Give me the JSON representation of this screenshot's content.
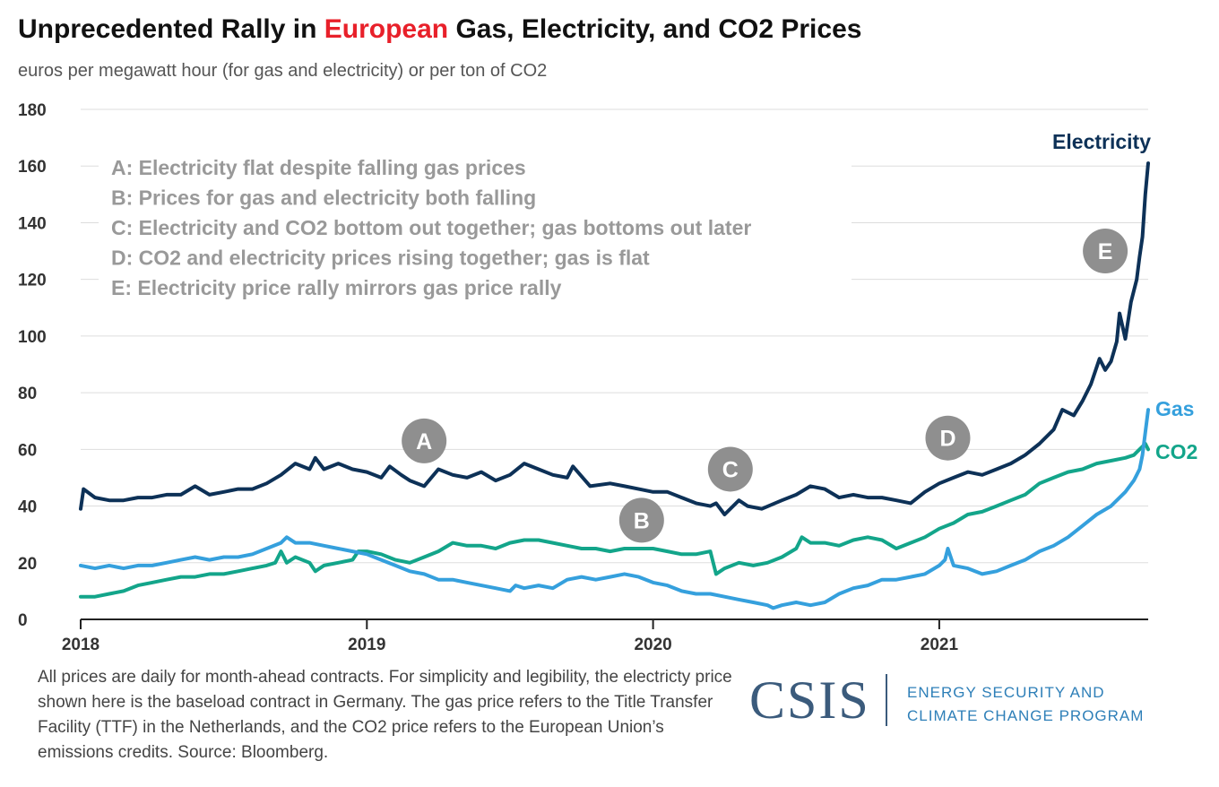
{
  "header": {
    "title_pre": "Unprecedented Rally in ",
    "title_highlight": "European",
    "title_post": " Gas, Electricity, and CO2 Prices",
    "subtitle": "euros per megawatt hour (for gas and electricity) or per ton of CO2"
  },
  "colors": {
    "electricity": "#0d3157",
    "gas": "#35a0dd",
    "co2": "#13a58a",
    "highlight": "#e8202a",
    "marker": "#8f8f8f",
    "legend_text": "#999999"
  },
  "chart_data": {
    "type": "line",
    "title": "Unprecedented Rally in European Gas, Electricity, and CO2 Prices",
    "ylabel": "euros per megawatt hour (for gas and electricity) or per ton of CO2",
    "ylim": [
      0,
      180
    ],
    "yticks": [
      "0",
      "20",
      "40",
      "60",
      "80",
      "100",
      "120",
      "140",
      "160",
      "180"
    ],
    "xlim": [
      2018.0,
      2021.73
    ],
    "xticks": [
      {
        "value": 2018,
        "label": "2018"
      },
      {
        "value": 2019,
        "label": "2019"
      },
      {
        "value": 2020,
        "label": "2020"
      },
      {
        "value": 2021,
        "label": "2021"
      }
    ],
    "grid": true,
    "series": [
      {
        "name": "Electricity",
        "color": "#0d3157",
        "points": [
          [
            2018.0,
            39
          ],
          [
            2018.01,
            46
          ],
          [
            2018.05,
            43
          ],
          [
            2018.1,
            42
          ],
          [
            2018.15,
            42
          ],
          [
            2018.2,
            43
          ],
          [
            2018.25,
            43
          ],
          [
            2018.3,
            44
          ],
          [
            2018.35,
            44
          ],
          [
            2018.4,
            47
          ],
          [
            2018.45,
            44
          ],
          [
            2018.5,
            45
          ],
          [
            2018.55,
            46
          ],
          [
            2018.6,
            46
          ],
          [
            2018.65,
            48
          ],
          [
            2018.7,
            51
          ],
          [
            2018.75,
            55
          ],
          [
            2018.8,
            53
          ],
          [
            2018.82,
            57
          ],
          [
            2018.85,
            53
          ],
          [
            2018.9,
            55
          ],
          [
            2018.95,
            53
          ],
          [
            2019.0,
            52
          ],
          [
            2019.05,
            50
          ],
          [
            2019.08,
            54
          ],
          [
            2019.12,
            51
          ],
          [
            2019.15,
            49
          ],
          [
            2019.2,
            47
          ],
          [
            2019.25,
            53
          ],
          [
            2019.3,
            51
          ],
          [
            2019.35,
            50
          ],
          [
            2019.4,
            52
          ],
          [
            2019.45,
            49
          ],
          [
            2019.5,
            51
          ],
          [
            2019.55,
            55
          ],
          [
            2019.6,
            53
          ],
          [
            2019.65,
            51
          ],
          [
            2019.7,
            50
          ],
          [
            2019.72,
            54
          ],
          [
            2019.78,
            47
          ],
          [
            2019.85,
            48
          ],
          [
            2019.9,
            47
          ],
          [
            2019.95,
            46
          ],
          [
            2020.0,
            45
          ],
          [
            2020.05,
            45
          ],
          [
            2020.1,
            43
          ],
          [
            2020.15,
            41
          ],
          [
            2020.2,
            40
          ],
          [
            2020.22,
            41
          ],
          [
            2020.25,
            37
          ],
          [
            2020.3,
            42
          ],
          [
            2020.33,
            40
          ],
          [
            2020.38,
            39
          ],
          [
            2020.45,
            42
          ],
          [
            2020.5,
            44
          ],
          [
            2020.55,
            47
          ],
          [
            2020.6,
            46
          ],
          [
            2020.65,
            43
          ],
          [
            2020.7,
            44
          ],
          [
            2020.75,
            43
          ],
          [
            2020.8,
            43
          ],
          [
            2020.85,
            42
          ],
          [
            2020.9,
            41
          ],
          [
            2020.95,
            45
          ],
          [
            2021.0,
            48
          ],
          [
            2021.05,
            50
          ],
          [
            2021.1,
            52
          ],
          [
            2021.15,
            51
          ],
          [
            2021.2,
            53
          ],
          [
            2021.25,
            55
          ],
          [
            2021.3,
            58
          ],
          [
            2021.35,
            62
          ],
          [
            2021.4,
            67
          ],
          [
            2021.43,
            74
          ],
          [
            2021.47,
            72
          ],
          [
            2021.5,
            77
          ],
          [
            2021.53,
            83
          ],
          [
            2021.56,
            92
          ],
          [
            2021.58,
            88
          ],
          [
            2021.6,
            91
          ],
          [
            2021.62,
            98
          ],
          [
            2021.63,
            108
          ],
          [
            2021.65,
            99
          ],
          [
            2021.67,
            112
          ],
          [
            2021.69,
            120
          ],
          [
            2021.7,
            128
          ],
          [
            2021.71,
            135
          ],
          [
            2021.72,
            150
          ],
          [
            2021.73,
            161
          ]
        ]
      },
      {
        "name": "Gas",
        "color": "#35a0dd",
        "points": [
          [
            2018.0,
            19
          ],
          [
            2018.05,
            18
          ],
          [
            2018.1,
            19
          ],
          [
            2018.15,
            18
          ],
          [
            2018.2,
            19
          ],
          [
            2018.25,
            19
          ],
          [
            2018.3,
            20
          ],
          [
            2018.35,
            21
          ],
          [
            2018.4,
            22
          ],
          [
            2018.45,
            21
          ],
          [
            2018.5,
            22
          ],
          [
            2018.55,
            22
          ],
          [
            2018.6,
            23
          ],
          [
            2018.65,
            25
          ],
          [
            2018.7,
            27
          ],
          [
            2018.72,
            29
          ],
          [
            2018.75,
            27
          ],
          [
            2018.8,
            27
          ],
          [
            2018.85,
            26
          ],
          [
            2018.9,
            25
          ],
          [
            2018.95,
            24
          ],
          [
            2019.0,
            23
          ],
          [
            2019.05,
            21
          ],
          [
            2019.1,
            19
          ],
          [
            2019.15,
            17
          ],
          [
            2019.2,
            16
          ],
          [
            2019.25,
            14
          ],
          [
            2019.3,
            14
          ],
          [
            2019.35,
            13
          ],
          [
            2019.4,
            12
          ],
          [
            2019.45,
            11
          ],
          [
            2019.5,
            10
          ],
          [
            2019.52,
            12
          ],
          [
            2019.55,
            11
          ],
          [
            2019.6,
            12
          ],
          [
            2019.65,
            11
          ],
          [
            2019.7,
            14
          ],
          [
            2019.75,
            15
          ],
          [
            2019.8,
            14
          ],
          [
            2019.85,
            15
          ],
          [
            2019.9,
            16
          ],
          [
            2019.95,
            15
          ],
          [
            2020.0,
            13
          ],
          [
            2020.05,
            12
          ],
          [
            2020.1,
            10
          ],
          [
            2020.15,
            9
          ],
          [
            2020.2,
            9
          ],
          [
            2020.25,
            8
          ],
          [
            2020.3,
            7
          ],
          [
            2020.35,
            6
          ],
          [
            2020.4,
            5
          ],
          [
            2020.42,
            4
          ],
          [
            2020.45,
            5
          ],
          [
            2020.5,
            6
          ],
          [
            2020.55,
            5
          ],
          [
            2020.6,
            6
          ],
          [
            2020.65,
            9
          ],
          [
            2020.7,
            11
          ],
          [
            2020.75,
            12
          ],
          [
            2020.8,
            14
          ],
          [
            2020.85,
            14
          ],
          [
            2020.9,
            15
          ],
          [
            2020.95,
            16
          ],
          [
            2021.0,
            19
          ],
          [
            2021.02,
            21
          ],
          [
            2021.03,
            25
          ],
          [
            2021.05,
            19
          ],
          [
            2021.1,
            18
          ],
          [
            2021.15,
            16
          ],
          [
            2021.2,
            17
          ],
          [
            2021.25,
            19
          ],
          [
            2021.3,
            21
          ],
          [
            2021.35,
            24
          ],
          [
            2021.4,
            26
          ],
          [
            2021.45,
            29
          ],
          [
            2021.5,
            33
          ],
          [
            2021.55,
            37
          ],
          [
            2021.6,
            40
          ],
          [
            2021.65,
            45
          ],
          [
            2021.68,
            49
          ],
          [
            2021.7,
            53
          ],
          [
            2021.71,
            58
          ],
          [
            2021.72,
            66
          ],
          [
            2021.73,
            74
          ]
        ]
      },
      {
        "name": "CO2",
        "color": "#13a58a",
        "points": [
          [
            2018.0,
            8
          ],
          [
            2018.05,
            8
          ],
          [
            2018.1,
            9
          ],
          [
            2018.15,
            10
          ],
          [
            2018.2,
            12
          ],
          [
            2018.25,
            13
          ],
          [
            2018.3,
            14
          ],
          [
            2018.35,
            15
          ],
          [
            2018.4,
            15
          ],
          [
            2018.45,
            16
          ],
          [
            2018.5,
            16
          ],
          [
            2018.55,
            17
          ],
          [
            2018.6,
            18
          ],
          [
            2018.65,
            19
          ],
          [
            2018.68,
            20
          ],
          [
            2018.7,
            24
          ],
          [
            2018.72,
            20
          ],
          [
            2018.75,
            22
          ],
          [
            2018.8,
            20
          ],
          [
            2018.82,
            17
          ],
          [
            2018.85,
            19
          ],
          [
            2018.9,
            20
          ],
          [
            2018.95,
            21
          ],
          [
            2018.97,
            24
          ],
          [
            2019.0,
            24
          ],
          [
            2019.05,
            23
          ],
          [
            2019.1,
            21
          ],
          [
            2019.15,
            20
          ],
          [
            2019.2,
            22
          ],
          [
            2019.25,
            24
          ],
          [
            2019.3,
            27
          ],
          [
            2019.35,
            26
          ],
          [
            2019.4,
            26
          ],
          [
            2019.45,
            25
          ],
          [
            2019.5,
            27
          ],
          [
            2019.55,
            28
          ],
          [
            2019.6,
            28
          ],
          [
            2019.65,
            27
          ],
          [
            2019.7,
            26
          ],
          [
            2019.75,
            25
          ],
          [
            2019.8,
            25
          ],
          [
            2019.85,
            24
          ],
          [
            2019.9,
            25
          ],
          [
            2019.95,
            25
          ],
          [
            2020.0,
            25
          ],
          [
            2020.05,
            24
          ],
          [
            2020.1,
            23
          ],
          [
            2020.15,
            23
          ],
          [
            2020.2,
            24
          ],
          [
            2020.22,
            16
          ],
          [
            2020.25,
            18
          ],
          [
            2020.3,
            20
          ],
          [
            2020.35,
            19
          ],
          [
            2020.4,
            20
          ],
          [
            2020.45,
            22
          ],
          [
            2020.5,
            25
          ],
          [
            2020.52,
            29
          ],
          [
            2020.55,
            27
          ],
          [
            2020.6,
            27
          ],
          [
            2020.65,
            26
          ],
          [
            2020.7,
            28
          ],
          [
            2020.75,
            29
          ],
          [
            2020.8,
            28
          ],
          [
            2020.85,
            25
          ],
          [
            2020.9,
            27
          ],
          [
            2020.95,
            29
          ],
          [
            2021.0,
            32
          ],
          [
            2021.05,
            34
          ],
          [
            2021.1,
            37
          ],
          [
            2021.15,
            38
          ],
          [
            2021.2,
            40
          ],
          [
            2021.25,
            42
          ],
          [
            2021.3,
            44
          ],
          [
            2021.35,
            48
          ],
          [
            2021.4,
            50
          ],
          [
            2021.45,
            52
          ],
          [
            2021.5,
            53
          ],
          [
            2021.55,
            55
          ],
          [
            2021.6,
            56
          ],
          [
            2021.65,
            57
          ],
          [
            2021.68,
            58
          ],
          [
            2021.7,
            60
          ],
          [
            2021.72,
            62
          ],
          [
            2021.73,
            60
          ]
        ]
      }
    ],
    "annotations": {
      "legend_lines": [
        "A: Electricity flat despite falling gas prices",
        "B: Prices for gas and electricity both falling",
        "C: Electricity and CO2 bottom out together; gas bottoms out later",
        "D: CO2 and electricity prices rising together; gas is flat",
        "E: Electricity price rally mirrors gas price rally"
      ],
      "markers": [
        {
          "label": "A",
          "x": 2019.2,
          "y": 63
        },
        {
          "label": "B",
          "x": 2019.96,
          "y": 35
        },
        {
          "label": "C",
          "x": 2020.27,
          "y": 53
        },
        {
          "label": "D",
          "x": 2021.03,
          "y": 64
        },
        {
          "label": "E",
          "x": 2021.58,
          "y": 130
        }
      ],
      "series_labels": [
        {
          "text": "Electricity",
          "series": "Electricity"
        },
        {
          "text": "Gas",
          "series": "Gas"
        },
        {
          "text": "CO2",
          "series": "CO2"
        }
      ]
    }
  },
  "footer": {
    "note": "All prices are daily for month-ahead contracts. For simplicity and legibility, the electricty price shown here is the baseload contract in Germany. The gas price refers to the Title Transfer Facility (TTF) in the Netherlands, and the CO2 price refers to the European Union’s emissions credits. Source: Bloomberg.",
    "logo": "CSIS",
    "program_line1": "ENERGY SECURITY AND",
    "program_line2": "CLIMATE CHANGE PROGRAM"
  }
}
